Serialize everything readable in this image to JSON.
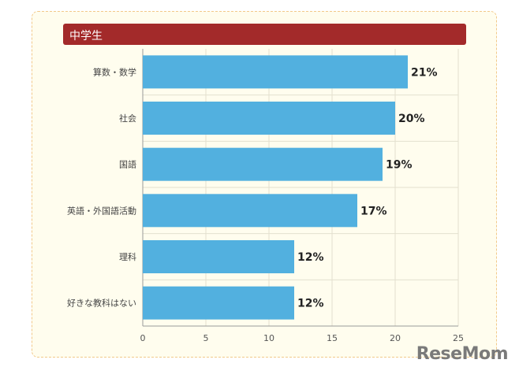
{
  "header": {
    "title": "中学生",
    "color": "#a32a2a"
  },
  "chart_data": {
    "type": "bar",
    "orientation": "horizontal",
    "categories": [
      "算数・数学",
      "社会",
      "国語",
      "英語・外国語活動",
      "理科",
      "好きな教科はない"
    ],
    "values": [
      21,
      20,
      19,
      17,
      12,
      12
    ],
    "data_labels": [
      "21%",
      "20%",
      "19%",
      "17%",
      "12%",
      "12%"
    ],
    "xlim": [
      0,
      25
    ],
    "xticks": [
      0,
      5,
      10,
      15,
      20,
      25
    ],
    "bar_color": "#52b0df",
    "grid": true
  },
  "watermark": {
    "text": "ReseMom"
  }
}
